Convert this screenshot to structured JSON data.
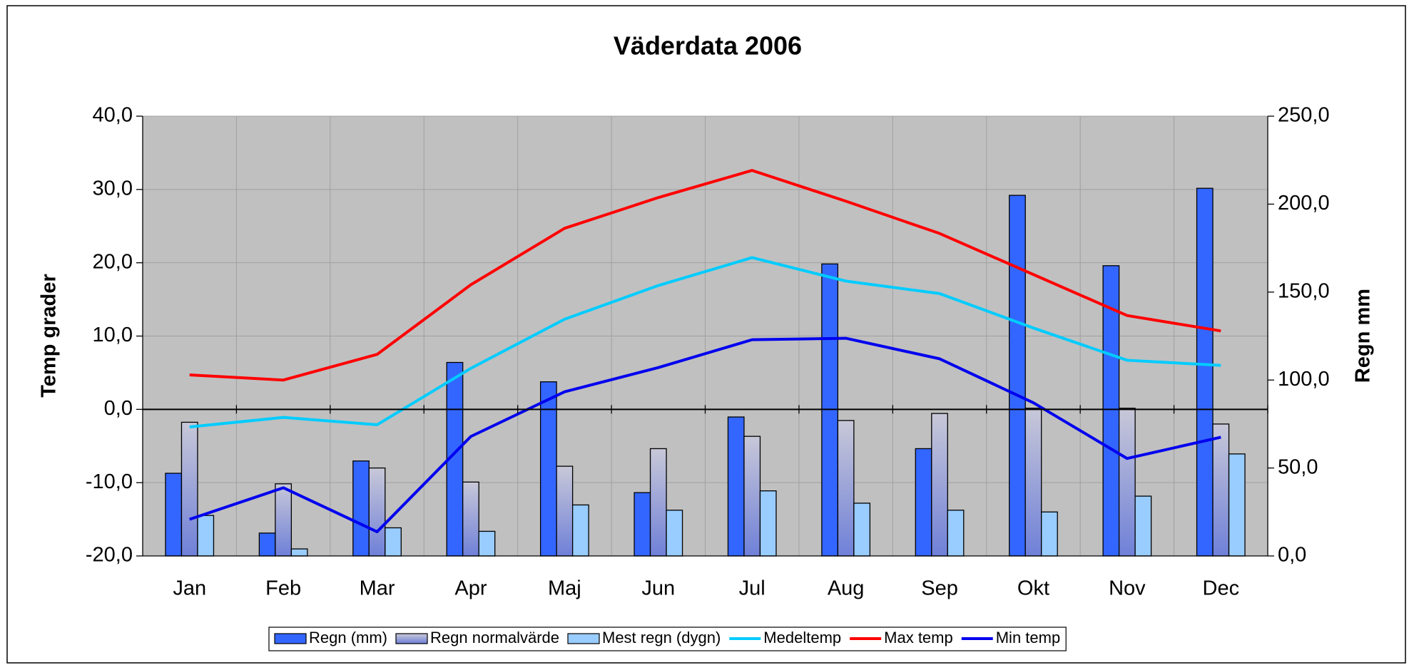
{
  "chart_data": {
    "type": "bar-line",
    "title": "Väderdata 2006",
    "ylabel": "Temp grader",
    "y2label": "Regn mm",
    "categories": [
      "Jan",
      "Feb",
      "Mar",
      "Apr",
      "Maj",
      "Jun",
      "Jul",
      "Aug",
      "Sep",
      "Okt",
      "Nov",
      "Dec"
    ],
    "ylim": [
      -20,
      40
    ],
    "yticks": [
      {
        "value": -20,
        "label": "-20,0"
      },
      {
        "value": -10,
        "label": "-10,0"
      },
      {
        "value": 0,
        "label": "0,0"
      },
      {
        "value": 10,
        "label": "10,0"
      },
      {
        "value": 20,
        "label": "20,0"
      },
      {
        "value": 30,
        "label": "30,0"
      },
      {
        "value": 40,
        "label": "40,0"
      }
    ],
    "y2lim": [
      0,
      250
    ],
    "y2ticks": [
      {
        "value": 0,
        "label": "0,0"
      },
      {
        "value": 50,
        "label": "50,0"
      },
      {
        "value": 100,
        "label": "100,0"
      },
      {
        "value": 150,
        "label": "150,0"
      },
      {
        "value": 200,
        "label": "200,0"
      },
      {
        "value": 250,
        "label": "250,0"
      }
    ],
    "grid": true,
    "legend": "bottom",
    "series": [
      {
        "name": "Regn (mm)",
        "type": "bar",
        "axis": "y2",
        "color": "#3366ff",
        "values": [
          47,
          13,
          54,
          110,
          99,
          36,
          79,
          166,
          61,
          205,
          165,
          209
        ]
      },
      {
        "name": "Regn normalvärde",
        "type": "bar",
        "axis": "y2",
        "color": "#6f80d8",
        "values": [
          76,
          41,
          50,
          42,
          51,
          61,
          68,
          77,
          81,
          84,
          84,
          75
        ]
      },
      {
        "name": "Mest regn (dygn)",
        "type": "bar",
        "axis": "y2",
        "color": "#99ccff",
        "values": [
          23,
          4,
          16,
          14,
          29,
          26,
          37,
          30,
          26,
          25,
          34,
          58
        ]
      },
      {
        "name": "Medeltemp",
        "type": "line",
        "color": "#00ccff",
        "values": [
          -2.4,
          -1.1,
          -2.1,
          5.6,
          12.3,
          16.9,
          20.7,
          17.5,
          15.8,
          11.1,
          6.7,
          6.0
        ]
      },
      {
        "name": "Max temp",
        "type": "line",
        "color": "#ff0000",
        "values": [
          4.7,
          4.0,
          7.5,
          17.0,
          24.7,
          28.9,
          32.6,
          28.4,
          24.0,
          18.4,
          12.8,
          10.7
        ]
      },
      {
        "name": "Min temp",
        "type": "line",
        "color": "#0000ee",
        "values": [
          -15.0,
          -10.7,
          -16.7,
          -3.7,
          2.4,
          5.7,
          9.5,
          9.7,
          6.9,
          0.9,
          -6.7,
          -3.8
        ]
      }
    ]
  }
}
